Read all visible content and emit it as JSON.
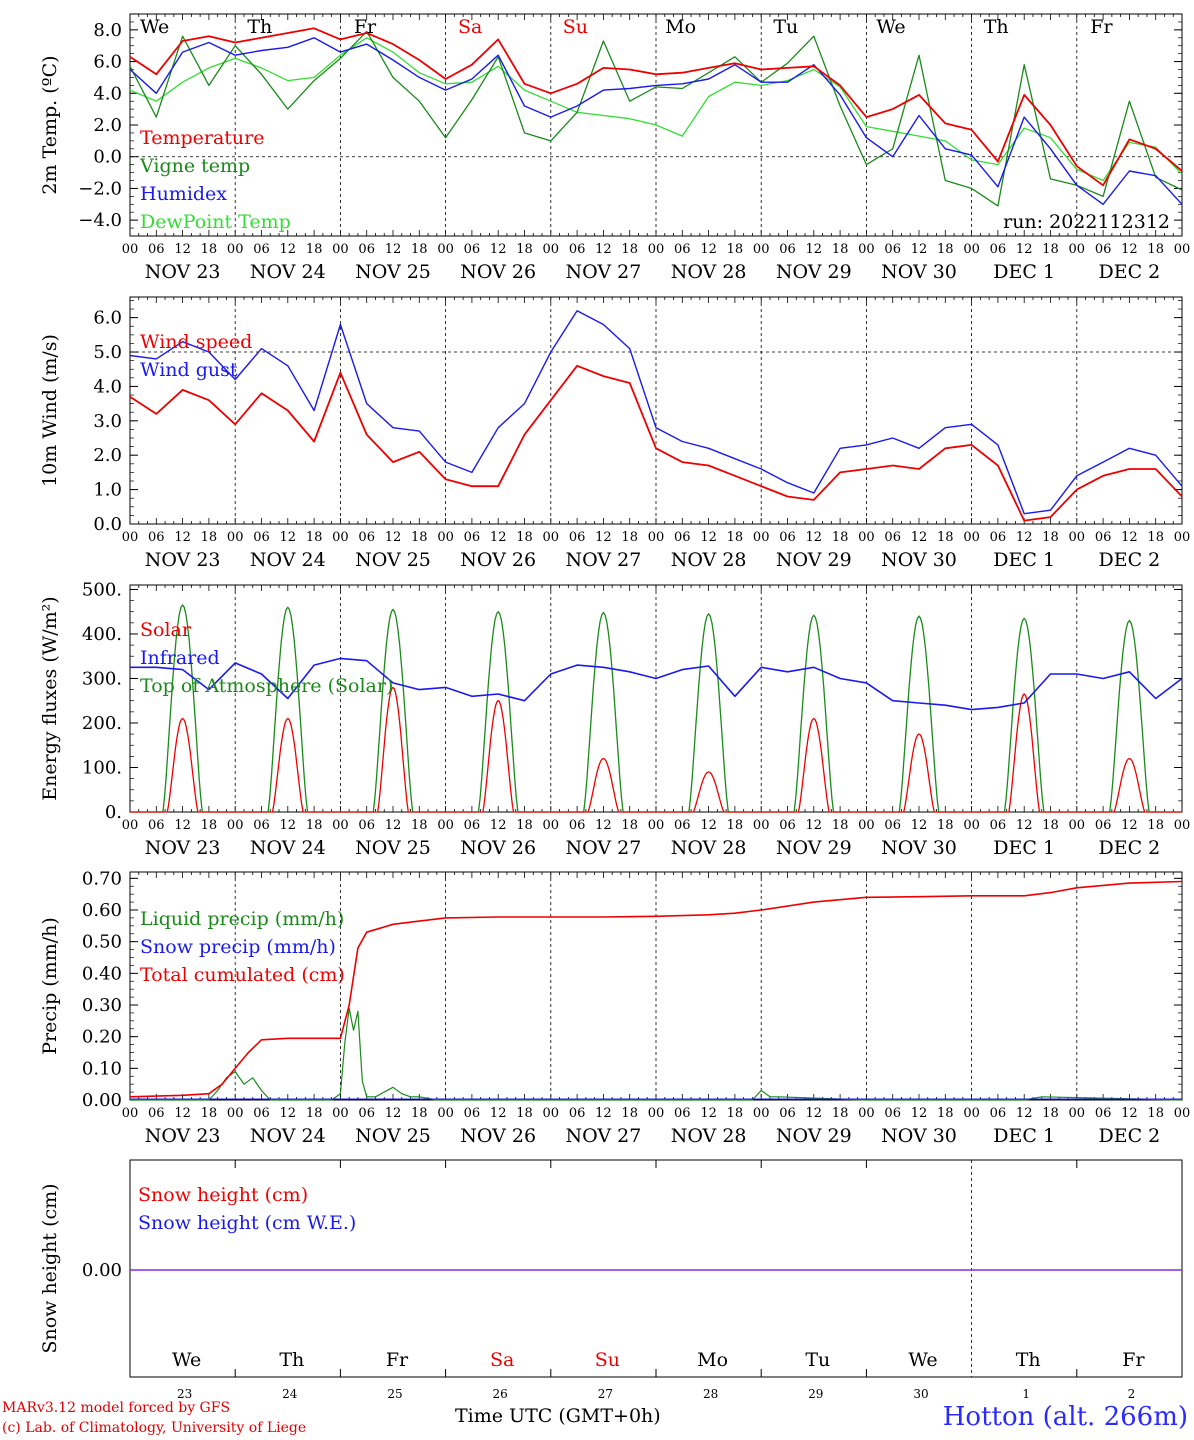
{
  "day_names": [
    "We",
    "Th",
    "Fr",
    "Sa",
    "Su",
    "Mo",
    "Tu",
    "We",
    "Th",
    "Fr"
  ],
  "weekend_days": [
    "Sa",
    "Su"
  ],
  "hour_ticks": [
    "00",
    "06",
    "12",
    "18"
  ],
  "date_labels": [
    "NOV 23",
    "NOV 24",
    "NOV 25",
    "NOV 26",
    "NOV 27",
    "NOV 28",
    "NOV 29",
    "NOV 30",
    "DEC  1",
    "DEC  2"
  ],
  "snow_day_numbers": [
    "23",
    "24",
    "25",
    "26",
    "27",
    "28",
    "29",
    "30",
    "1",
    "2"
  ],
  "footer": {
    "model": "MARv3.12 model forced by GFS",
    "lab": "(c) Lab. of Climatology, University of Liege",
    "xtitle": "Time UTC (GMT+0h)",
    "station": "Hotton (alt. 266m)"
  },
  "colors": {
    "red": "#ee0000",
    "green": "#1a8a1a",
    "blue": "#1a1aee",
    "lightgreen": "#33dd33",
    "purple": "#8a2be2"
  },
  "chart_data": [
    {
      "type": "line",
      "ylabel": "2m Temp. (ºC)",
      "ylim": [
        -5,
        9
      ],
      "yticks": [
        "8.0",
        "6.0",
        "4.0",
        "2.0",
        "0.0",
        "−2.0",
        "−4.0"
      ],
      "ytick_values": [
        8,
        6,
        4,
        2,
        0,
        -2,
        -4
      ],
      "zero_dashed": true,
      "annotation": "run: 2022112312",
      "legend_placement": "left",
      "legend": [
        "Temperature",
        "Vigne temp",
        "Humidex",
        "DewPoint Temp"
      ],
      "x_unit": "hours since NOV 23 00 UTC",
      "series": [
        {
          "name": "Temperature",
          "color": "red",
          "x": [
            0,
            6,
            12,
            18,
            24,
            30,
            36,
            42,
            48,
            54,
            60,
            66,
            72,
            78,
            84,
            90,
            96,
            102,
            108,
            114,
            120,
            126,
            132,
            138,
            144,
            150,
            156,
            162,
            168,
            174,
            180,
            186,
            192,
            198,
            204,
            210,
            216,
            222,
            228,
            234,
            240
          ],
          "y": [
            6.3,
            5.2,
            7.3,
            7.6,
            7.2,
            7.5,
            7.8,
            8.1,
            7.4,
            7.8,
            7.1,
            6.1,
            4.9,
            5.8,
            7.4,
            4.6,
            4.0,
            4.6,
            5.6,
            5.5,
            5.2,
            5.3,
            5.6,
            5.9,
            5.5,
            5.6,
            5.7,
            4.5,
            2.5,
            3.0,
            3.9,
            2.1,
            1.7,
            -0.3,
            3.9,
            2.0,
            -0.6,
            -1.8,
            1.1,
            0.5,
            -0.9
          ]
        },
        {
          "name": "Vigne temp",
          "color": "green",
          "x": [
            0,
            6,
            12,
            18,
            24,
            30,
            36,
            42,
            48,
            54,
            60,
            66,
            72,
            78,
            84,
            90,
            96,
            102,
            108,
            114,
            120,
            126,
            132,
            138,
            144,
            150,
            156,
            162,
            168,
            174,
            180,
            186,
            192,
            198,
            204,
            210,
            216,
            222,
            228,
            234,
            240
          ],
          "y": [
            5.7,
            2.5,
            7.6,
            4.5,
            7.0,
            5.2,
            3.0,
            4.8,
            6.2,
            7.9,
            5.0,
            3.5,
            1.2,
            3.6,
            6.3,
            1.5,
            1.0,
            2.8,
            7.3,
            3.5,
            4.4,
            4.3,
            5.3,
            6.3,
            4.7,
            5.9,
            7.6,
            3.2,
            -0.5,
            0.5,
            6.4,
            -1.5,
            -2.0,
            -3.1,
            5.8,
            -1.4,
            -1.8,
            -2.5,
            3.5,
            -1.3,
            -2.1
          ]
        },
        {
          "name": "Humidex",
          "color": "blue",
          "x": [
            0,
            6,
            12,
            18,
            24,
            30,
            36,
            42,
            48,
            54,
            60,
            66,
            72,
            78,
            84,
            90,
            96,
            102,
            108,
            114,
            120,
            126,
            132,
            138,
            144,
            150,
            156,
            162,
            168,
            174,
            180,
            186,
            192,
            198,
            204,
            210,
            216,
            222,
            228,
            234,
            240
          ],
          "y": [
            5.5,
            4.0,
            6.6,
            7.2,
            6.4,
            6.7,
            6.9,
            7.5,
            6.6,
            7.1,
            6.1,
            5.0,
            4.2,
            4.9,
            6.4,
            3.2,
            2.5,
            3.2,
            4.2,
            4.3,
            4.5,
            4.6,
            4.9,
            5.8,
            4.7,
            4.7,
            5.8,
            3.9,
            1.2,
            0.0,
            2.6,
            0.5,
            0.1,
            -1.9,
            2.5,
            0.5,
            -1.8,
            -3.0,
            -0.9,
            -1.2,
            -3.0
          ]
        },
        {
          "name": "DewPoint Temp",
          "color": "lightgreen",
          "x": [
            0,
            6,
            12,
            18,
            24,
            30,
            36,
            42,
            48,
            54,
            60,
            66,
            72,
            78,
            84,
            90,
            96,
            102,
            108,
            114,
            120,
            126,
            132,
            138,
            144,
            150,
            156,
            162,
            168,
            174,
            180,
            186,
            192,
            198,
            204,
            210,
            216,
            222,
            228,
            234,
            240
          ],
          "y": [
            4.2,
            3.5,
            4.7,
            5.6,
            6.2,
            5.6,
            4.8,
            5.0,
            6.4,
            7.5,
            6.6,
            5.3,
            4.6,
            4.7,
            5.7,
            4.2,
            3.5,
            2.8,
            2.6,
            2.4,
            2.0,
            1.3,
            3.8,
            4.7,
            4.5,
            4.8,
            5.5,
            4.4,
            1.9,
            1.6,
            1.3,
            1.0,
            -0.2,
            -0.5,
            1.8,
            1.2,
            -0.8,
            -1.5,
            0.9,
            0.6,
            -1.1
          ]
        }
      ]
    },
    {
      "type": "line",
      "ylabel": "10m Wind (m/s)",
      "ylim": [
        0,
        6.6
      ],
      "yticks": [
        "6.0",
        "5.0",
        "4.0",
        "3.0",
        "2.0",
        "1.0",
        "0.0"
      ],
      "ytick_values": [
        6,
        5,
        4,
        3,
        2,
        1,
        0
      ],
      "dashed_line": 5,
      "legend_placement": "left",
      "legend": [
        "Wind speed",
        "Wind gust"
      ],
      "series": [
        {
          "name": "Wind speed",
          "color": "red",
          "x": [
            0,
            6,
            12,
            18,
            24,
            30,
            36,
            42,
            48,
            54,
            60,
            66,
            72,
            78,
            84,
            90,
            96,
            102,
            108,
            114,
            120,
            126,
            132,
            138,
            144,
            150,
            156,
            162,
            168,
            174,
            180,
            186,
            192,
            198,
            204,
            210,
            216,
            222,
            228,
            234,
            240
          ],
          "y": [
            3.7,
            3.2,
            3.9,
            3.6,
            2.9,
            3.8,
            3.3,
            2.4,
            4.4,
            2.6,
            1.8,
            2.1,
            1.3,
            1.1,
            1.1,
            2.6,
            3.6,
            4.6,
            4.3,
            4.1,
            2.2,
            1.8,
            1.7,
            1.4,
            1.1,
            0.8,
            0.7,
            1.5,
            1.6,
            1.7,
            1.6,
            2.2,
            2.3,
            1.7,
            0.1,
            0.2,
            1.0,
            1.4,
            1.6,
            1.6,
            0.8
          ]
        },
        {
          "name": "Wind gust",
          "color": "blue",
          "x": [
            0,
            6,
            12,
            18,
            24,
            30,
            36,
            42,
            48,
            54,
            60,
            66,
            72,
            78,
            84,
            90,
            96,
            102,
            108,
            114,
            120,
            126,
            132,
            138,
            144,
            150,
            156,
            162,
            168,
            174,
            180,
            186,
            192,
            198,
            204,
            210,
            216,
            222,
            228,
            234,
            240
          ],
          "y": [
            4.9,
            4.8,
            5.3,
            5.0,
            4.2,
            5.1,
            4.6,
            3.3,
            5.8,
            3.5,
            2.8,
            2.7,
            1.8,
            1.5,
            2.8,
            3.5,
            5.0,
            6.2,
            5.8,
            5.1,
            2.8,
            2.4,
            2.2,
            1.9,
            1.6,
            1.2,
            0.9,
            2.2,
            2.3,
            2.5,
            2.2,
            2.8,
            2.9,
            2.3,
            0.3,
            0.4,
            1.4,
            1.8,
            2.2,
            2.0,
            1.1
          ]
        }
      ]
    },
    {
      "type": "line",
      "ylabel": "Energy fluxes (W/m²)",
      "ylim": [
        0,
        510
      ],
      "yticks": [
        "500.",
        "400.",
        "300.",
        "200.",
        "100.",
        "0."
      ],
      "ytick_values": [
        500,
        400,
        300,
        200,
        100,
        0
      ],
      "legend_placement": "left",
      "legend": [
        "Solar",
        "Infrared",
        "Top of Atmosphere (Solar)"
      ],
      "daily_peaks": {
        "solar": [
          210,
          210,
          280,
          250,
          120,
          90,
          210,
          175,
          265,
          120
        ],
        "toa": [
          465,
          460,
          455,
          450,
          448,
          445,
          442,
          440,
          435,
          430
        ]
      },
      "series": [
        {
          "name": "Infrared",
          "color": "blue",
          "x": [
            0,
            6,
            12,
            18,
            24,
            30,
            36,
            42,
            48,
            54,
            60,
            66,
            72,
            78,
            84,
            90,
            96,
            102,
            108,
            114,
            120,
            126,
            132,
            138,
            144,
            150,
            156,
            162,
            168,
            174,
            180,
            186,
            192,
            198,
            204,
            210,
            216,
            222,
            228,
            234,
            240
          ],
          "y": [
            325,
            325,
            320,
            275,
            335,
            310,
            255,
            330,
            345,
            340,
            290,
            275,
            280,
            260,
            265,
            250,
            310,
            330,
            325,
            315,
            300,
            320,
            328,
            260,
            325,
            315,
            325,
            300,
            290,
            250,
            245,
            240,
            230,
            235,
            245,
            310,
            310,
            300,
            315,
            255,
            300
          ]
        }
      ]
    },
    {
      "type": "line",
      "ylabel": "Precip (mm/h)",
      "ylim": [
        0,
        0.72
      ],
      "yticks": [
        "0.70",
        "0.60",
        "0.50",
        "0.40",
        "0.30",
        "0.20",
        "0.10",
        "0.00"
      ],
      "ytick_values": [
        0.7,
        0.6,
        0.5,
        0.4,
        0.3,
        0.2,
        0.1,
        0
      ],
      "legend_placement": "left",
      "legend": [
        "Liquid precip (mm/h)",
        "Snow precip (mm/h)",
        "Total cumulated (cm)"
      ],
      "series": [
        {
          "name": "Total cumulated (cm)",
          "color": "red",
          "x": [
            0,
            12,
            18,
            21,
            24,
            27,
            30,
            36,
            42,
            48,
            50,
            52,
            54,
            60,
            66,
            72,
            84,
            96,
            108,
            120,
            132,
            138,
            144,
            156,
            168,
            180,
            192,
            204,
            210,
            216,
            228,
            240
          ],
          "y": [
            0.01,
            0.015,
            0.02,
            0.05,
            0.1,
            0.15,
            0.19,
            0.195,
            0.195,
            0.195,
            0.3,
            0.48,
            0.53,
            0.555,
            0.565,
            0.575,
            0.578,
            0.578,
            0.578,
            0.58,
            0.585,
            0.59,
            0.6,
            0.625,
            0.64,
            0.642,
            0.645,
            0.645,
            0.655,
            0.67,
            0.685,
            0.69
          ]
        },
        {
          "name": "Liquid precip (mm/h)",
          "color": "green",
          "x": [
            0,
            18,
            20,
            22,
            24,
            26,
            28,
            30,
            32,
            46,
            48,
            49,
            50,
            51,
            52,
            53,
            54,
            56,
            60,
            62,
            64,
            66,
            70,
            96,
            120,
            142,
            144,
            146,
            148,
            168,
            204,
            208,
            240
          ],
          "y": [
            0,
            0,
            0.03,
            0.07,
            0.09,
            0.05,
            0.07,
            0.03,
            0.0,
            0.0,
            0.02,
            0.18,
            0.29,
            0.22,
            0.28,
            0.06,
            0.01,
            0.01,
            0.04,
            0.02,
            0.01,
            0.01,
            0.0,
            0.0,
            0.0,
            0.0,
            0.03,
            0.01,
            0.01,
            0.0,
            0.0,
            0.01,
            0.0
          ]
        }
      ]
    },
    {
      "type": "line",
      "ylabel": "Snow height (cm)",
      "yticks": [
        "0.00"
      ],
      "ytick_values": [
        0
      ],
      "legend_placement": "left",
      "legend": [
        "Snow height (cm)",
        "Snow height (cm W.E.)"
      ],
      "series": [
        {
          "name": "Snow height (cm)",
          "color": "red",
          "x": [
            0,
            240
          ],
          "y": [
            0,
            0
          ]
        },
        {
          "name": "Snow height (cm W.E.)",
          "color": "blue",
          "x": [
            0,
            240
          ],
          "y": [
            0,
            0
          ]
        }
      ]
    }
  ]
}
